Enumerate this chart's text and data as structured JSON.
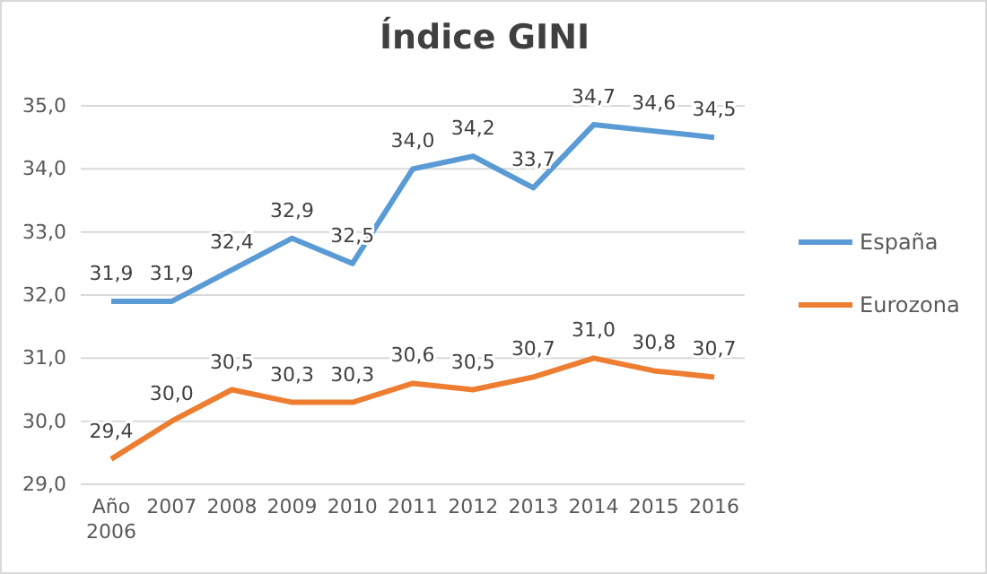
{
  "chart_data": {
    "type": "line",
    "title": "Índice GINI",
    "categories": [
      "Año 2006",
      "2007",
      "2008",
      "2009",
      "2010",
      "2011",
      "2012",
      "2013",
      "2014",
      "2015",
      "2016"
    ],
    "series": [
      {
        "name": "España",
        "color": "#5b9bd5",
        "values": [
          31.9,
          31.9,
          32.4,
          32.9,
          32.5,
          34.0,
          34.2,
          33.7,
          34.7,
          34.6,
          34.5
        ],
        "value_labels": [
          "31,9",
          "31,9",
          "32,4",
          "32,9",
          "32,5",
          "34,0",
          "34,2",
          "33,7",
          "34,7",
          "34,6",
          "34,5"
        ]
      },
      {
        "name": "Eurozona",
        "color": "#ed7d31",
        "values": [
          29.4,
          30.0,
          30.5,
          30.3,
          30.3,
          30.6,
          30.5,
          30.7,
          31.0,
          30.8,
          30.7
        ],
        "value_labels": [
          "29,4",
          "30,0",
          "30,5",
          "30,3",
          "30,3",
          "30,6",
          "30,5",
          "30,7",
          "31,0",
          "30,8",
          "30,7"
        ]
      }
    ],
    "ylim": [
      29,
      35
    ],
    "yticks": [
      {
        "value": 29,
        "label": "29,0"
      },
      {
        "value": 30,
        "label": "30,0"
      },
      {
        "value": 31,
        "label": "31,0"
      },
      {
        "value": 32,
        "label": "32,0"
      },
      {
        "value": 33,
        "label": "33,0"
      },
      {
        "value": 34,
        "label": "34,0"
      },
      {
        "value": 35,
        "label": "35,0"
      }
    ],
    "grid": "y",
    "legend": "right",
    "marker": "none",
    "line_style": "solid"
  }
}
